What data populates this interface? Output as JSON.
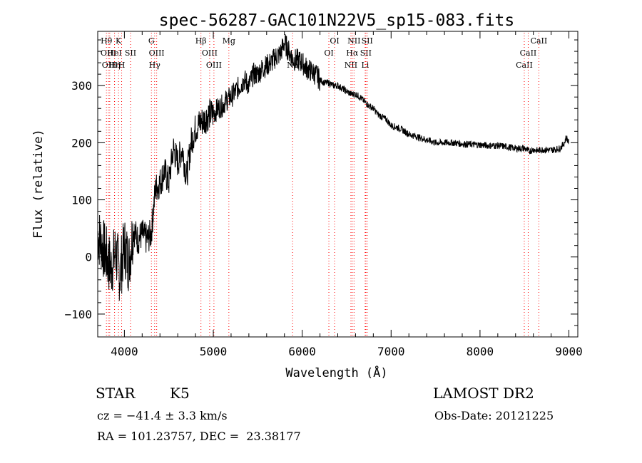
{
  "chart_data": {
    "type": "line",
    "title": "spec-56287-GAC101N22V5_sp15-083.fits",
    "xlabel": "Wavelength (Å)",
    "ylabel": "Flux (relative)",
    "xlim": [
      3700,
      9100
    ],
    "ylim": [
      -140,
      395
    ],
    "xticks": [
      4000,
      5000,
      6000,
      7000,
      8000,
      9000
    ],
    "yticks": [
      -100,
      0,
      100,
      200,
      300
    ],
    "grid": false,
    "line_color": "#000000",
    "marker_color": "#ff0000",
    "series": [
      {
        "x": [
          3700,
          3750,
          3800,
          3850,
          3900,
          3950,
          4000,
          4050,
          4100,
          4150,
          4200,
          4250,
          4300,
          4350,
          4400,
          4450,
          4500,
          4550,
          4600,
          4650,
          4700,
          4750,
          4800,
          4850,
          4900,
          4950,
          5000,
          5050,
          5100,
          5150,
          5200,
          5250,
          5300,
          5350,
          5400,
          5450,
          5500,
          5550,
          5600,
          5650,
          5700,
          5750,
          5800,
          5850,
          5900,
          5950,
          6000,
          6050,
          6100,
          6150,
          6200,
          6250,
          6300,
          6350,
          6400,
          6450,
          6500,
          6550,
          6600,
          6650,
          6700,
          6750,
          6800,
          6850,
          6900,
          6950,
          7000,
          7100,
          7200,
          7300,
          7400,
          7500,
          7600,
          7700,
          7800,
          7900,
          8000,
          8100,
          8200,
          8300,
          8400,
          8500,
          8550,
          8600,
          8650,
          8700,
          8800,
          8900,
          8950,
          8970,
          9000
        ],
        "values": [
          40,
          20,
          0,
          -20,
          10,
          -30,
          20,
          -10,
          50,
          30,
          40,
          30,
          40,
          120,
          130,
          150,
          130,
          190,
          165,
          190,
          140,
          200,
          225,
          235,
          240,
          250,
          250,
          260,
          265,
          275,
          280,
          290,
          300,
          310,
          300,
          320,
          320,
          330,
          335,
          340,
          350,
          355,
          375,
          360,
          345,
          345,
          340,
          330,
          325,
          320,
          310,
          305,
          305,
          300,
          300,
          295,
          290,
          285,
          285,
          280,
          272,
          265,
          260,
          250,
          245,
          240,
          230,
          225,
          215,
          210,
          205,
          200,
          200,
          200,
          198,
          197,
          196,
          195,
          195,
          193,
          190,
          190,
          185,
          188,
          186,
          188,
          187,
          190,
          200,
          210,
          200
        ]
      }
    ],
    "line_markers": [
      {
        "x": 3798,
        "label": "Hθ",
        "row": 1
      },
      {
        "x": 3820,
        "label": "OIII",
        "row": 2
      },
      {
        "x": 3835,
        "label": "OIII",
        "row": 3
      },
      {
        "x": 3889,
        "label": "HeI",
        "row": 2
      },
      {
        "x": 3889,
        "label": "Hη",
        "row": 3
      },
      {
        "x": 3934,
        "label": "K",
        "row": 1
      },
      {
        "x": 3969,
        "label": "H",
        "row": 3
      },
      {
        "x": 4069,
        "label": "SII",
        "row": 2
      },
      {
        "x": 4304,
        "label": "G",
        "row": 1
      },
      {
        "x": 4340,
        "label": "Hγ",
        "row": 3
      },
      {
        "x": 4363,
        "label": "OIII",
        "row": 2
      },
      {
        "x": 4861,
        "label": "Hβ",
        "row": 1
      },
      {
        "x": 4959,
        "label": "OIII",
        "row": 2
      },
      {
        "x": 5007,
        "label": "OIII",
        "row": 3
      },
      {
        "x": 5175,
        "label": "Mg",
        "row": 1
      },
      {
        "x": 5892,
        "label": "Na",
        "row": 3
      },
      {
        "x": 6300,
        "label": "OI",
        "row": 2
      },
      {
        "x": 6364,
        "label": "OI",
        "row": 1
      },
      {
        "x": 6548,
        "label": "NII",
        "row": 3
      },
      {
        "x": 6563,
        "label": "Hα",
        "row": 2
      },
      {
        "x": 6583,
        "label": "NII",
        "row": 1
      },
      {
        "x": 6708,
        "label": "Li",
        "row": 3
      },
      {
        "x": 6716,
        "label": "SII",
        "row": 2
      },
      {
        "x": 6731,
        "label": "SII",
        "row": 1
      },
      {
        "x": 8498,
        "label": "CaII",
        "row": 3
      },
      {
        "x": 8542,
        "label": "CaII",
        "row": 2
      },
      {
        "x": 8662,
        "label": "CaII",
        "row": 1
      }
    ]
  },
  "info": {
    "object_type": "STAR",
    "subclass": "K5",
    "survey": "LAMOST DR2",
    "redshift": "cz = −41.4 ± 3.3 km/s",
    "obs_date": "Obs-Date: 20121225",
    "coords": "RA = 101.23757, DEC =  23.38177"
  }
}
